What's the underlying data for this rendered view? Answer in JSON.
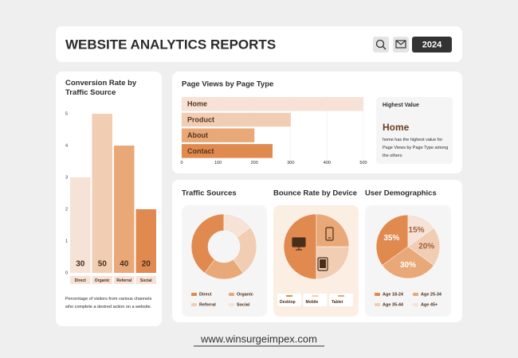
{
  "header": {
    "title": "WEBSITE ANALYTICS REPORTS",
    "year": "2024"
  },
  "chart_data": [
    {
      "type": "bar",
      "title": "Conversion Rate by Traffic Source",
      "categories": [
        "Direct",
        "Organic",
        "Referral",
        "Social"
      ],
      "values": [
        30,
        50,
        40,
        20
      ],
      "colors": [
        "#f6e2d6",
        "#f1cdb4",
        "#e9a878",
        "#e08a50"
      ],
      "ylim": [
        0,
        50
      ],
      "yticks": [
        0,
        {
          "value": 10,
          "label": "1"
        },
        {
          "value": 20,
          "label": "2"
        },
        {
          "value": 30,
          "label": "3"
        },
        {
          "value": 40,
          "label": "4"
        },
        {
          "value": 50,
          "label": "5"
        }
      ],
      "caption": "Percentage of visitors from various channels who complete a desired action on a website."
    },
    {
      "type": "bar",
      "orientation": "horizontal",
      "title": "Page Views by Page Type",
      "categories": [
        "Home",
        "Product",
        "About",
        "Contact"
      ],
      "values": [
        500,
        300,
        200,
        250
      ],
      "colors": [
        "#f6e2d6",
        "#f1cdb4",
        "#e9a878",
        "#e08a50"
      ],
      "xlim": [
        0,
        500
      ],
      "xticks": [
        0,
        100,
        200,
        300,
        400,
        500
      ],
      "grid": true
    },
    {
      "type": "donut",
      "title": "Traffic Sources",
      "categories": [
        "Direct",
        "Organic",
        "Referral",
        "Social"
      ],
      "values": [
        40,
        20,
        25,
        15
      ],
      "colors": [
        "#e08a50",
        "#e9a878",
        "#f1cdb4",
        "#f6e2d6"
      ]
    },
    {
      "type": "pie",
      "title": "Bounce Rate by Device",
      "categories": [
        "Desktop",
        "Mobile",
        "Tablet"
      ],
      "values": [
        50,
        25,
        25
      ],
      "colors": [
        "#e08a50",
        "#f1cdb4",
        "#e9a878"
      ]
    },
    {
      "type": "pie",
      "title": "User Demographics",
      "categories": [
        "Age 18-24",
        "Age 25-34",
        "Age 35-44",
        "Age 45+"
      ],
      "values": [
        35,
        30,
        20,
        15
      ],
      "value_labels": [
        "35%",
        "30%",
        "20%",
        "15%"
      ],
      "colors": [
        "#e08a50",
        "#e9a878",
        "#f1cdb4",
        "#f6e2d6"
      ]
    }
  ],
  "highest_value": {
    "heading": "Highest Value",
    "value": "Home",
    "description": "home has the highest value for Page Views by Page Type among the others"
  },
  "footer": {
    "url": "www.winsurgeimpex.com"
  }
}
